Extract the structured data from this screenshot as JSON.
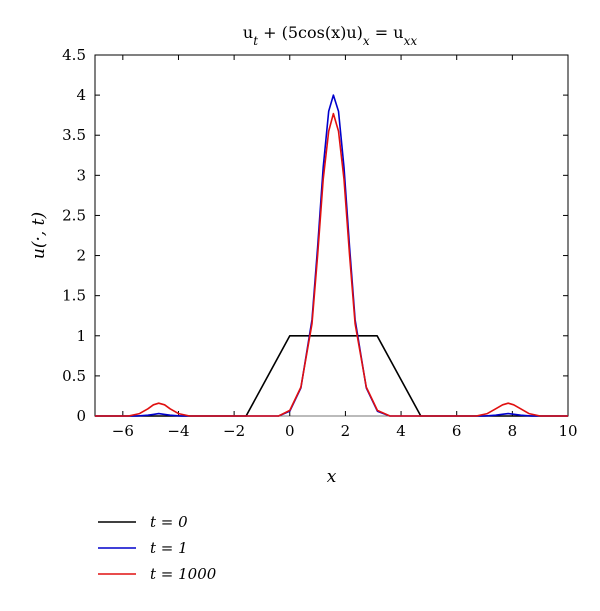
{
  "chart_data": {
    "type": "line",
    "title": "u_t + (5cos(x)u)_x = u_xx",
    "xlabel": "x",
    "ylabel": "u(·, t)",
    "xlim": [
      -7,
      10
    ],
    "ylim": [
      0,
      4.5
    ],
    "x_ticks": [
      -6,
      -4,
      -2,
      0,
      2,
      4,
      6,
      8,
      10
    ],
    "y_ticks": [
      0,
      0.5,
      1,
      1.5,
      2,
      2.5,
      3,
      3.5,
      4,
      4.5
    ],
    "grid": false,
    "legend_position": "bottom-left, below axes",
    "series": [
      {
        "name": "t = 0",
        "color": "#000000",
        "x": [
          -7,
          -1.57,
          0,
          3.14,
          4.71,
          10
        ],
        "y": [
          0,
          0,
          1,
          1,
          0,
          0
        ]
      },
      {
        "name": "t = 1",
        "color": "#0000cc",
        "x": [
          -7,
          -5.5,
          -5.1,
          -4.9,
          -4.71,
          -4.5,
          -4.3,
          -3.9,
          -2,
          -0.4,
          0.0,
          0.4,
          0.8,
          1.0,
          1.2,
          1.4,
          1.57,
          1.75,
          1.95,
          2.15,
          2.35,
          2.75,
          3.15,
          3.6,
          4.5,
          7.0,
          7.4,
          7.6,
          7.85,
          8.1,
          8.3,
          8.7,
          10
        ],
        "y": [
          0,
          0,
          0.01,
          0.02,
          0.03,
          0.02,
          0.01,
          0,
          0,
          0,
          0.06,
          0.35,
          1.2,
          2.1,
          3.1,
          3.8,
          4.0,
          3.8,
          3.1,
          2.1,
          1.2,
          0.35,
          0.06,
          0,
          0,
          0,
          0.01,
          0.02,
          0.03,
          0.02,
          0.01,
          0,
          0
        ]
      },
      {
        "name": "t = 1000",
        "color": "#e01010",
        "x": [
          -7,
          -5.8,
          -5.4,
          -5.1,
          -4.9,
          -4.71,
          -4.5,
          -4.3,
          -4.0,
          -3.6,
          -2,
          -0.4,
          0.0,
          0.4,
          0.8,
          1.0,
          1.2,
          1.4,
          1.57,
          1.75,
          1.95,
          2.15,
          2.35,
          2.75,
          3.15,
          3.6,
          4.5,
          6.7,
          7.1,
          7.4,
          7.65,
          7.85,
          8.05,
          8.3,
          8.6,
          9.0,
          10
        ],
        "y": [
          0,
          0,
          0.03,
          0.09,
          0.14,
          0.16,
          0.14,
          0.09,
          0.03,
          0,
          0,
          0,
          0.07,
          0.36,
          1.15,
          2.0,
          2.95,
          3.55,
          3.77,
          3.55,
          2.95,
          2.0,
          1.15,
          0.36,
          0.07,
          0,
          0,
          0,
          0.03,
          0.09,
          0.14,
          0.16,
          0.14,
          0.09,
          0.03,
          0,
          0
        ]
      }
    ]
  }
}
